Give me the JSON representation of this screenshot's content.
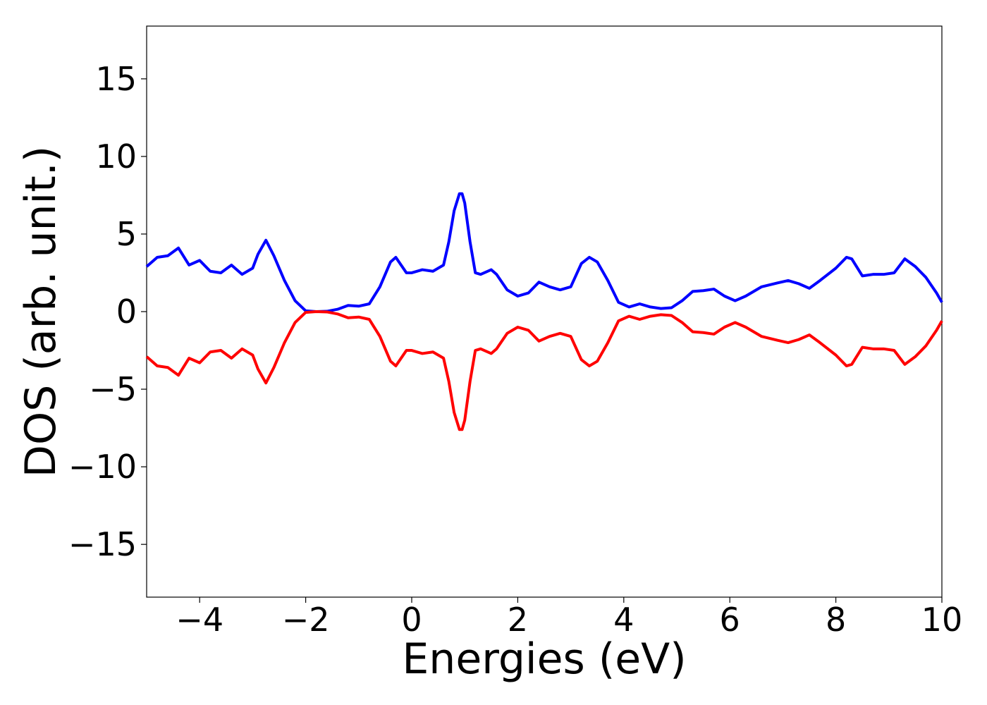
{
  "chart_data": {
    "type": "line",
    "xlabel": "Energies (eV)",
    "ylabel": "DOS (arb. unit.)",
    "x": [
      -5,
      -4.8,
      -4.6,
      -4.4,
      -4.2,
      -4.0,
      -3.8,
      -3.6,
      -3.4,
      -3.2,
      -3.0,
      -2.9,
      -2.75,
      -2.6,
      -2.4,
      -2.2,
      -2.0,
      -1.8,
      -1.6,
      -1.4,
      -1.2,
      -1.0,
      -0.8,
      -0.6,
      -0.4,
      -0.3,
      -0.2,
      -0.1,
      0,
      0.2,
      0.4,
      0.6,
      0.7,
      0.8,
      0.9,
      0.95,
      1.0,
      1.1,
      1.2,
      1.3,
      1.5,
      1.6,
      1.8,
      2.0,
      2.2,
      2.4,
      2.6,
      2.8,
      3.0,
      3.2,
      3.35,
      3.5,
      3.7,
      3.9,
      4.1,
      4.3,
      4.5,
      4.7,
      4.9,
      5.1,
      5.3,
      5.5,
      5.7,
      5.9,
      6.1,
      6.3,
      6.6,
      6.9,
      7.1,
      7.3,
      7.5,
      7.7,
      8.0,
      8.2,
      8.3,
      8.5,
      8.7,
      8.9,
      9.1,
      9.3,
      9.5,
      9.7,
      9.9,
      10
    ],
    "series": [
      {
        "color": "#0000ff",
        "values": [
          2.9,
          3.5,
          3.6,
          4.1,
          3.0,
          3.3,
          2.6,
          2.5,
          3.0,
          2.4,
          2.8,
          3.7,
          4.6,
          3.6,
          2.0,
          0.7,
          0.05,
          0,
          0.02,
          0.15,
          0.4,
          0.35,
          0.5,
          1.6,
          3.2,
          3.5,
          3.0,
          2.5,
          2.5,
          2.7,
          2.6,
          3.0,
          4.5,
          6.5,
          7.6,
          7.6,
          7.0,
          4.5,
          2.5,
          2.4,
          2.7,
          2.4,
          1.4,
          1.0,
          1.2,
          1.9,
          1.6,
          1.4,
          1.6,
          3.1,
          3.5,
          3.2,
          2.0,
          0.6,
          0.3,
          0.5,
          0.3,
          0.2,
          0.25,
          0.7,
          1.3,
          1.35,
          1.45,
          1.0,
          0.7,
          1.0,
          1.6,
          1.85,
          2.0,
          1.8,
          1.5,
          2.0,
          2.8,
          3.5,
          3.4,
          2.3,
          2.4,
          2.4,
          2.5,
          3.4,
          2.9,
          2.2,
          1.2,
          0.6
        ]
      },
      {
        "color": "#ff0000",
        "values": [
          -2.9,
          -3.5,
          -3.6,
          -4.1,
          -3.0,
          -3.3,
          -2.6,
          -2.5,
          -3.0,
          -2.4,
          -2.8,
          -3.7,
          -4.6,
          -3.6,
          -2.0,
          -0.7,
          -0.05,
          0,
          -0.02,
          -0.15,
          -0.4,
          -0.35,
          -0.5,
          -1.6,
          -3.2,
          -3.5,
          -3.0,
          -2.5,
          -2.5,
          -2.7,
          -2.6,
          -3.0,
          -4.5,
          -6.5,
          -7.6,
          -7.6,
          -7.0,
          -4.5,
          -2.5,
          -2.4,
          -2.7,
          -2.4,
          -1.4,
          -1.0,
          -1.2,
          -1.9,
          -1.6,
          -1.4,
          -1.6,
          -3.1,
          -3.5,
          -3.2,
          -2.0,
          -0.6,
          -0.3,
          -0.5,
          -0.3,
          -0.2,
          -0.25,
          -0.7,
          -1.3,
          -1.35,
          -1.45,
          -1.0,
          -0.7,
          -1.0,
          -1.6,
          -1.85,
          -2.0,
          -1.8,
          -1.5,
          -2.0,
          -2.8,
          -3.5,
          -3.4,
          -2.3,
          -2.4,
          -2.4,
          -2.5,
          -3.4,
          -2.9,
          -2.2,
          -1.2,
          -0.6
        ]
      }
    ],
    "xlim": [
      -5,
      10
    ],
    "xticks": [
      {
        "value": -4,
        "label": "−4"
      },
      {
        "value": -2,
        "label": "−2"
      },
      0,
      2,
      4,
      6,
      8,
      10
    ],
    "ylim": [
      -18.4,
      18.4
    ],
    "yticks": [
      {
        "value": -15,
        "label": "−15"
      },
      {
        "value": -10,
        "label": "−10"
      },
      {
        "value": -5,
        "label": "−5"
      },
      0,
      5,
      10,
      15
    ],
    "grid": false
  }
}
